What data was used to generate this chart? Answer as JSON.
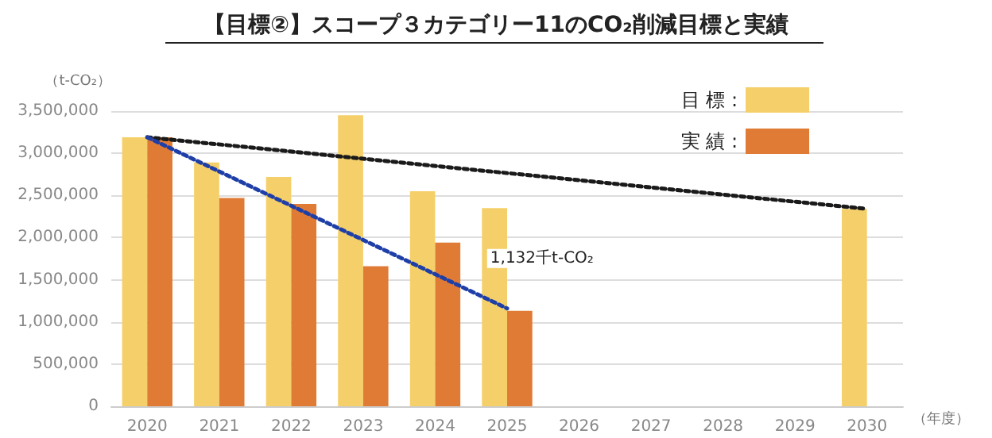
{
  "chart_data": {
    "type": "bar",
    "title": "【目標②】スコープ３カテゴリー11のCO₂削減目標と実績",
    "ylabel": "（t-CO₂）",
    "xlabel": "（年度）",
    "categories": [
      "2020",
      "2021",
      "2022",
      "2023",
      "2024",
      "2025",
      "2026",
      "2027",
      "2028",
      "2029",
      "2030"
    ],
    "series": [
      {
        "name": "目 標 :",
        "color": "#f5d06a",
        "values": [
          3190000,
          2890000,
          2720000,
          3450000,
          2550000,
          2350000,
          null,
          null,
          null,
          null,
          2340000
        ]
      },
      {
        "name": "実 績 :",
        "color": "#e07b35",
        "values": [
          3190000,
          2470000,
          2400000,
          1660000,
          1940000,
          1132000,
          null,
          null,
          null,
          null,
          null
        ]
      },
      {
        "type": "line",
        "color": "#1a1a1a",
        "line_style": "dotted",
        "values": [
          3190000,
          null,
          null,
          null,
          null,
          null,
          null,
          null,
          null,
          null,
          2340000
        ]
      },
      {
        "type": "line",
        "color": "#1f3fa8",
        "line_style": "dotted",
        "values": [
          3190000,
          null,
          null,
          null,
          null,
          1160000,
          null,
          null,
          null,
          null,
          null
        ]
      }
    ],
    "ylim": [
      0,
      3500000
    ],
    "yticks": [
      0,
      {
        "value": 500000,
        "label": "500,000"
      },
      {
        "value": 1000000,
        "label": "1,000,000"
      },
      {
        "value": 1500000,
        "label": "1,500,000"
      },
      {
        "value": 2000000,
        "label": "2,000,000"
      },
      {
        "value": 2500000,
        "label": "2,500,000"
      },
      {
        "value": 3000000,
        "label": "3,000,000"
      },
      {
        "value": 3500000,
        "label": "3,500,000"
      }
    ],
    "grid": "y",
    "legend": "top right",
    "annotations": [
      {
        "text": "1,132千t-CO₂",
        "x": "2025",
        "y": 1132000
      }
    ]
  }
}
